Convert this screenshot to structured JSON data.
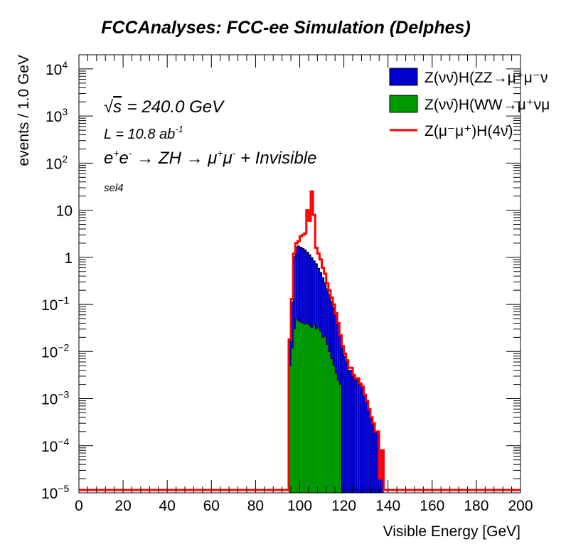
{
  "chart_data": {
    "type": "histogram",
    "title": "FCCAnalyses: FCC-ee Simulation (Delphes)",
    "xlabel": "Visible Energy [GeV]",
    "ylabel": "events / 1.0 GeV",
    "xlim": [
      0,
      200
    ],
    "ylim": [
      1e-05,
      20000
    ],
    "yscale": "log",
    "bin_width": 1.0,
    "grid": false,
    "legend_position": "top-right",
    "x_ticks": [
      0,
      20,
      40,
      60,
      80,
      100,
      120,
      140,
      160,
      180,
      200
    ],
    "y_ticks": [
      {
        "value": 1e-05,
        "base": "10",
        "exp": "−5"
      },
      {
        "value": 0.0001,
        "base": "10",
        "exp": "−4"
      },
      {
        "value": 0.001,
        "base": "10",
        "exp": "−3"
      },
      {
        "value": 0.01,
        "base": "10",
        "exp": "−2"
      },
      {
        "value": 0.1,
        "base": "10",
        "exp": "−1"
      },
      {
        "value": 1,
        "base": "1",
        "exp": ""
      },
      {
        "value": 10,
        "base": "10",
        "exp": ""
      },
      {
        "value": 100,
        "base": "10",
        "exp": "2"
      },
      {
        "value": 1000,
        "base": "10",
        "exp": "3"
      },
      {
        "value": 10000,
        "base": "10",
        "exp": "4"
      }
    ],
    "annotations": {
      "sqrt_s_value": " = 240.0 GeV",
      "lumi_prefix": "L = 10.8 ab",
      "lumi_exp": "-1",
      "process_parts": [
        "e",
        "+",
        "e",
        "-",
        " → ZH → μ",
        "+",
        "μ",
        "-",
        " + Invisible"
      ],
      "selection": "sel4"
    },
    "legend": [
      {
        "label": "Z(νν̄)H(ZZ→μ⁺μ⁻ν",
        "style": "fill",
        "color": "#0000cc"
      },
      {
        "label": "Z(νν̄)H(WW→μ⁺νμ",
        "style": "fill",
        "color": "#009900"
      },
      {
        "label": "Z(μ⁻μ⁺)H(4ν̄)",
        "style": "line",
        "color": "#ff0000"
      }
    ],
    "series": [
      {
        "name": "Z(νν̄)H(WW→μ⁺νμ",
        "color": "#009900",
        "bins": [
          [
            95,
            0.005
          ],
          [
            96,
            0.012
          ],
          [
            97,
            0.03
          ],
          [
            98,
            0.05
          ],
          [
            99,
            0.045
          ],
          [
            100,
            0.042
          ],
          [
            101,
            0.04
          ],
          [
            102,
            0.038
          ],
          [
            103,
            0.04
          ],
          [
            104,
            0.036
          ],
          [
            105,
            0.032
          ],
          [
            106,
            0.038
          ],
          [
            107,
            0.03
          ],
          [
            108,
            0.033
          ],
          [
            109,
            0.027
          ],
          [
            110,
            0.02
          ],
          [
            111,
            0.021
          ],
          [
            112,
            0.014
          ],
          [
            113,
            0.01
          ],
          [
            114,
            0.007
          ],
          [
            115,
            0.005
          ],
          [
            116,
            0.0035
          ],
          [
            117,
            0.0025
          ],
          [
            118,
            0.002
          ]
        ]
      },
      {
        "name": "Z(νν̄)H(ZZ→μ⁺μ⁻ν",
        "color": "#0000cc",
        "stack_on": 0,
        "bins": [
          [
            95,
            0.013
          ],
          [
            96,
            0.1
          ],
          [
            97,
            1.0
          ],
          [
            98,
            1.6
          ],
          [
            99,
            1.7
          ],
          [
            100,
            1.6
          ],
          [
            101,
            1.5
          ],
          [
            102,
            1.4
          ],
          [
            103,
            1.25
          ],
          [
            104,
            1.1
          ],
          [
            105,
            0.95
          ],
          [
            106,
            0.8
          ],
          [
            107,
            0.7
          ],
          [
            108,
            0.55
          ],
          [
            109,
            0.45
          ],
          [
            110,
            0.35
          ],
          [
            111,
            0.27
          ],
          [
            112,
            0.2
          ],
          [
            113,
            0.15
          ],
          [
            114,
            0.11
          ],
          [
            115,
            0.08
          ],
          [
            116,
            0.055
          ],
          [
            117,
            0.035
          ],
          [
            118,
            0.02
          ],
          [
            119,
            0.012
          ],
          [
            120,
            0.008
          ],
          [
            121,
            0.006
          ],
          [
            122,
            0.004
          ],
          [
            123,
            0.004
          ],
          [
            124,
            0.003
          ],
          [
            125,
            0.0025
          ],
          [
            126,
            0.0025
          ],
          [
            127,
            0.002
          ],
          [
            128,
            0.0017
          ],
          [
            129,
            0.0012
          ],
          [
            130,
            0.0009
          ],
          [
            131,
            0.0006
          ],
          [
            132,
            0.0004
          ],
          [
            133,
            0.0003
          ],
          [
            134,
            0.0002
          ],
          [
            135,
            0.0002
          ],
          [
            136,
            2e-05
          ],
          [
            137,
            8e-05
          ]
        ]
      },
      {
        "name": "Z(μ⁻μ⁺)H(4ν̄)",
        "color": "#ff0000",
        "bins": [
          [
            95,
            0.018
          ],
          [
            96,
            0.13
          ],
          [
            97,
            1.2
          ],
          [
            98,
            2.0
          ],
          [
            99,
            2.2
          ],
          [
            100,
            2.8
          ],
          [
            101,
            3.0
          ],
          [
            102,
            3.2
          ],
          [
            103,
            10.0
          ],
          [
            104,
            6.0
          ],
          [
            105,
            25.0
          ],
          [
            106,
            8.0
          ],
          [
            107,
            1.6
          ],
          [
            108,
            1.2
          ],
          [
            109,
            0.9
          ],
          [
            110,
            0.6
          ],
          [
            111,
            0.45
          ],
          [
            112,
            0.28
          ],
          [
            113,
            0.2
          ],
          [
            114,
            0.14
          ],
          [
            115,
            0.1
          ],
          [
            116,
            0.065
          ],
          [
            117,
            0.04
          ],
          [
            118,
            0.022
          ],
          [
            119,
            0.013
          ],
          [
            120,
            0.009
          ],
          [
            121,
            0.0065
          ],
          [
            122,
            0.0045
          ],
          [
            123,
            0.0045
          ],
          [
            124,
            0.0032
          ],
          [
            125,
            0.0027
          ],
          [
            126,
            0.0027
          ],
          [
            127,
            0.0021
          ],
          [
            128,
            0.0018
          ],
          [
            129,
            0.0012
          ],
          [
            130,
            0.0009
          ],
          [
            131,
            0.0006
          ],
          [
            132,
            0.0004
          ],
          [
            133,
            0.0003
          ],
          [
            134,
            0.0002
          ],
          [
            135,
            0.0002
          ],
          [
            136,
            2e-05
          ],
          [
            137,
            8e-05
          ]
        ]
      }
    ]
  }
}
